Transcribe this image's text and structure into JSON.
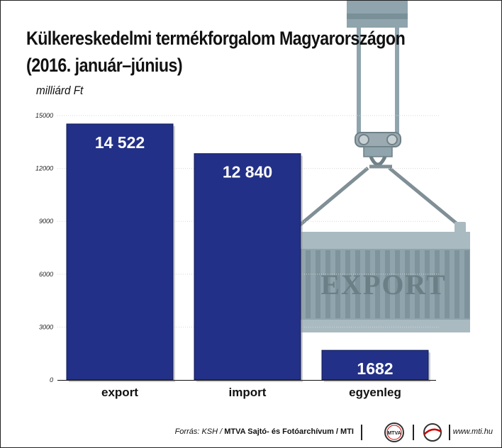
{
  "title_line1": "Külkereskedelmi termékforgalom Magyarországon",
  "title_line2": "(2016. január–június)",
  "unit": "milliárd Ft",
  "chart_data": {
    "type": "bar",
    "categories": [
      "export",
      "import",
      "egyenleg"
    ],
    "values": [
      14522,
      12840,
      1682
    ],
    "value_labels": [
      "14 522",
      "12 840",
      "1682"
    ],
    "ylim": [
      0,
      15000
    ],
    "yticks": [
      0,
      3000,
      6000,
      9000,
      12000,
      15000
    ],
    "grid": true,
    "bar_color": "#233087"
  },
  "illustration": {
    "container_text": "EXPORT",
    "container_color": "#8fa4ad"
  },
  "footer": {
    "source_prefix": "Forrás: KSH /",
    "source_org": "MTVA Sajtó- és Fotóarchívum / MTI",
    "logo1_text": "MTVA",
    "url": "www.mti.hu"
  }
}
